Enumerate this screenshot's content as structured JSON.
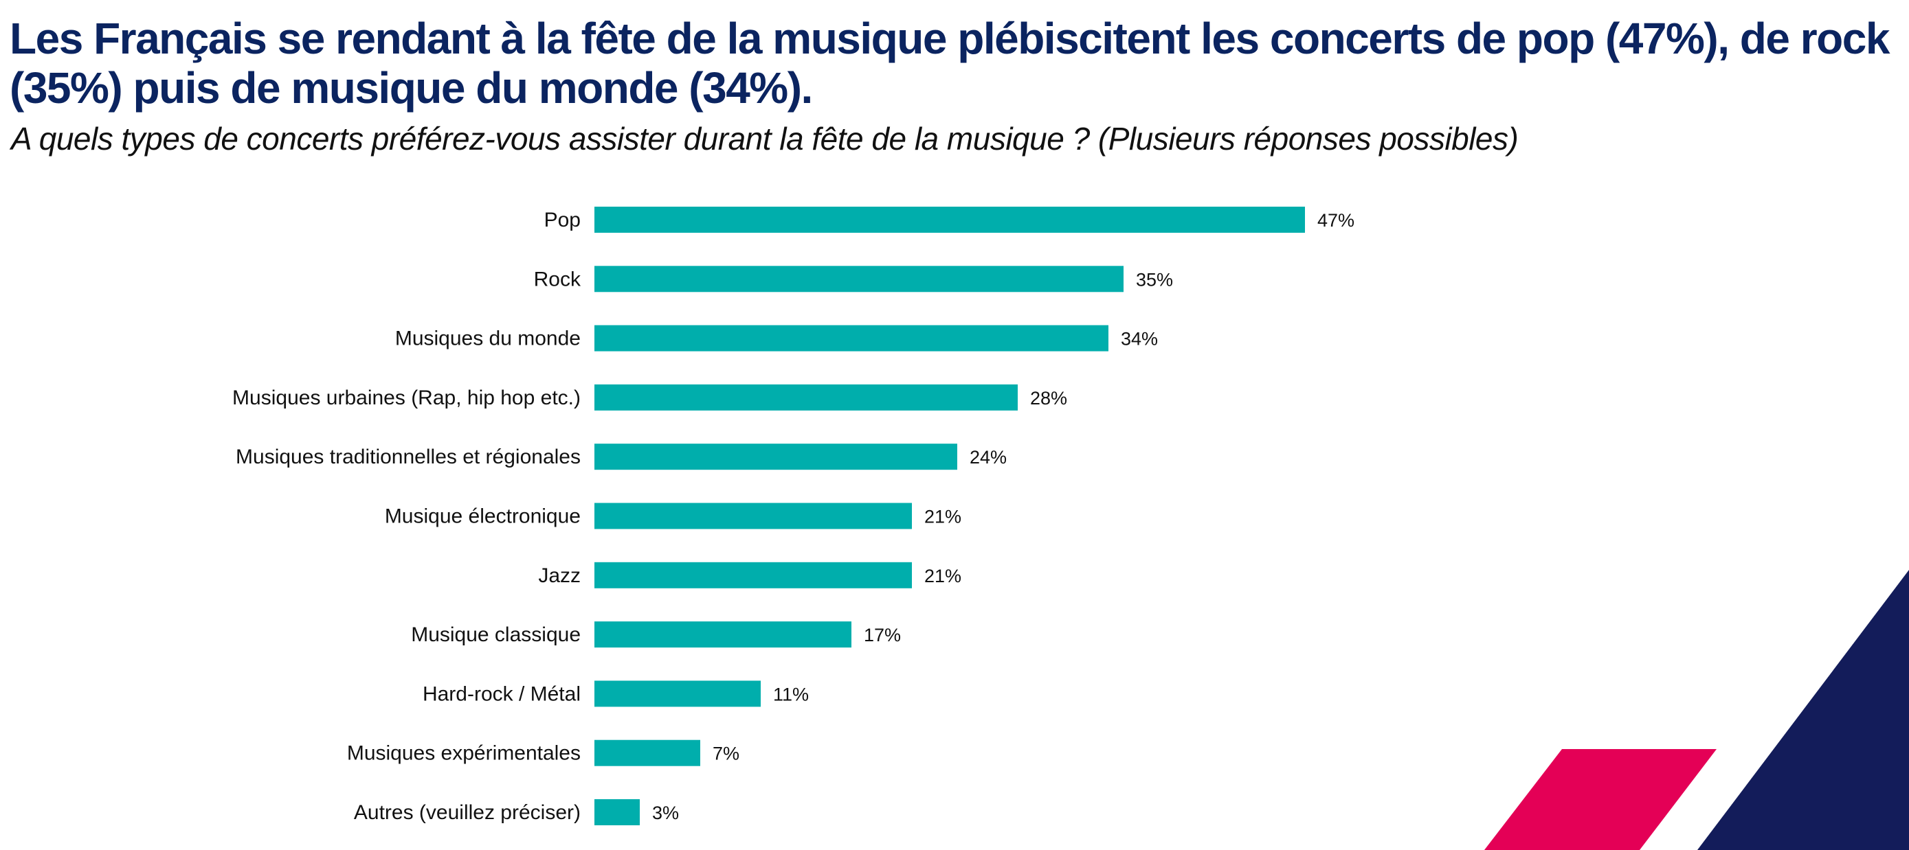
{
  "header": {
    "title": "Les Français se rendant à la fête de la musique plébiscitent les concerts de pop (47%), de rock (35%) puis de musique du monde (34%).",
    "subtitle": "A quels types de concerts préférez-vous assister durant la fête de la musique ? (Plusieurs réponses possibles)"
  },
  "colors": {
    "bar": "#00aeac",
    "title": "#0b2460",
    "navy_accent": "#131c5a",
    "pink_accent": "#e40056"
  },
  "chart_data": {
    "type": "bar",
    "orientation": "horizontal",
    "title": "Les Français se rendant à la fête de la musique plébiscitent les concerts de pop (47%), de rock (35%) puis de musique du monde (34%).",
    "subtitle": "A quels types de concerts préférez-vous assister durant la fête de la musique ? (Plusieurs réponses possibles)",
    "xlabel": "",
    "ylabel": "",
    "unit": "%",
    "xlim": [
      0,
      50
    ],
    "grid": false,
    "legend": "none",
    "categories": [
      "Pop",
      "Rock",
      "Musiques du monde",
      "Musiques urbaines (Rap, hip hop etc.)",
      "Musiques traditionnelles et régionales",
      "Musique électronique",
      "Jazz",
      "Musique classique",
      "Hard-rock / Métal",
      "Musiques expérimentales",
      "Autres (veuillez préciser)"
    ],
    "values": [
      47,
      35,
      34,
      28,
      24,
      21,
      21,
      17,
      11,
      7,
      3
    ],
    "value_labels": [
      "47%",
      "35%",
      "34%",
      "28%",
      "24%",
      "21%",
      "21%",
      "17%",
      "11%",
      "7%",
      "3%"
    ]
  }
}
